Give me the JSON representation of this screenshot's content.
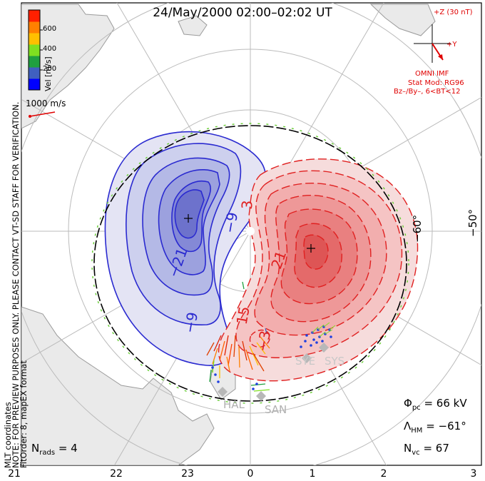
{
  "title": "24/May/2000 02:00–02:02 UT",
  "coordinate_system": "MLT coordinates",
  "notes": {
    "preview": "NOTE: FOR PREVIEW PURPOSES ONLY. PLEASE CONTACT VT-SD STAFF FOR VERIFICATION.",
    "fit": "FitOrder: 8, mapEX format"
  },
  "colorbar": {
    "label": "Vel [m/s]",
    "ticks": [
      "600",
      "400",
      "200"
    ],
    "colors": [
      "#0000ff",
      "#4060c0",
      "#20a040",
      "#80e020",
      "#ffc000",
      "#ff8000",
      "#ff2000"
    ]
  },
  "scale_vector": {
    "label": "1000 m/s",
    "color": "#e00000"
  },
  "imf": {
    "z_label": "+Z (30 nT)",
    "y_label": "+Y",
    "source": "OMNI IMF",
    "model": "Stat Mod: RG96",
    "condition": "Bz–/By–, 6<BT<12",
    "color": "#e00000"
  },
  "latitude_labels": [
    "−60°",
    "−50°"
  ],
  "mlt_labels": [
    "21",
    "22",
    "23",
    "0",
    "1",
    "2",
    "3"
  ],
  "contour_labels": [
    "−21",
    "−9",
    "−9",
    "3",
    "15",
    "21",
    "−3"
  ],
  "radar_labels": [
    "HAL",
    "SAN",
    "SYE",
    "SYS"
  ],
  "stats": {
    "potential_label": "Φ",
    "potential_sub": "pc",
    "potential_value": "= 66 kV",
    "hm_label": "Λ",
    "hm_sub": "HM",
    "hm_value": "= −61°",
    "vc_label": "N",
    "vc_sub": "vc",
    "vc_value": "= 67",
    "rads_label": "N",
    "rads_sub": "rads",
    "rads_value": "= 4"
  },
  "colors": {
    "negative_cell": "#2a2ad0",
    "positive_cell": "#e02020"
  }
}
